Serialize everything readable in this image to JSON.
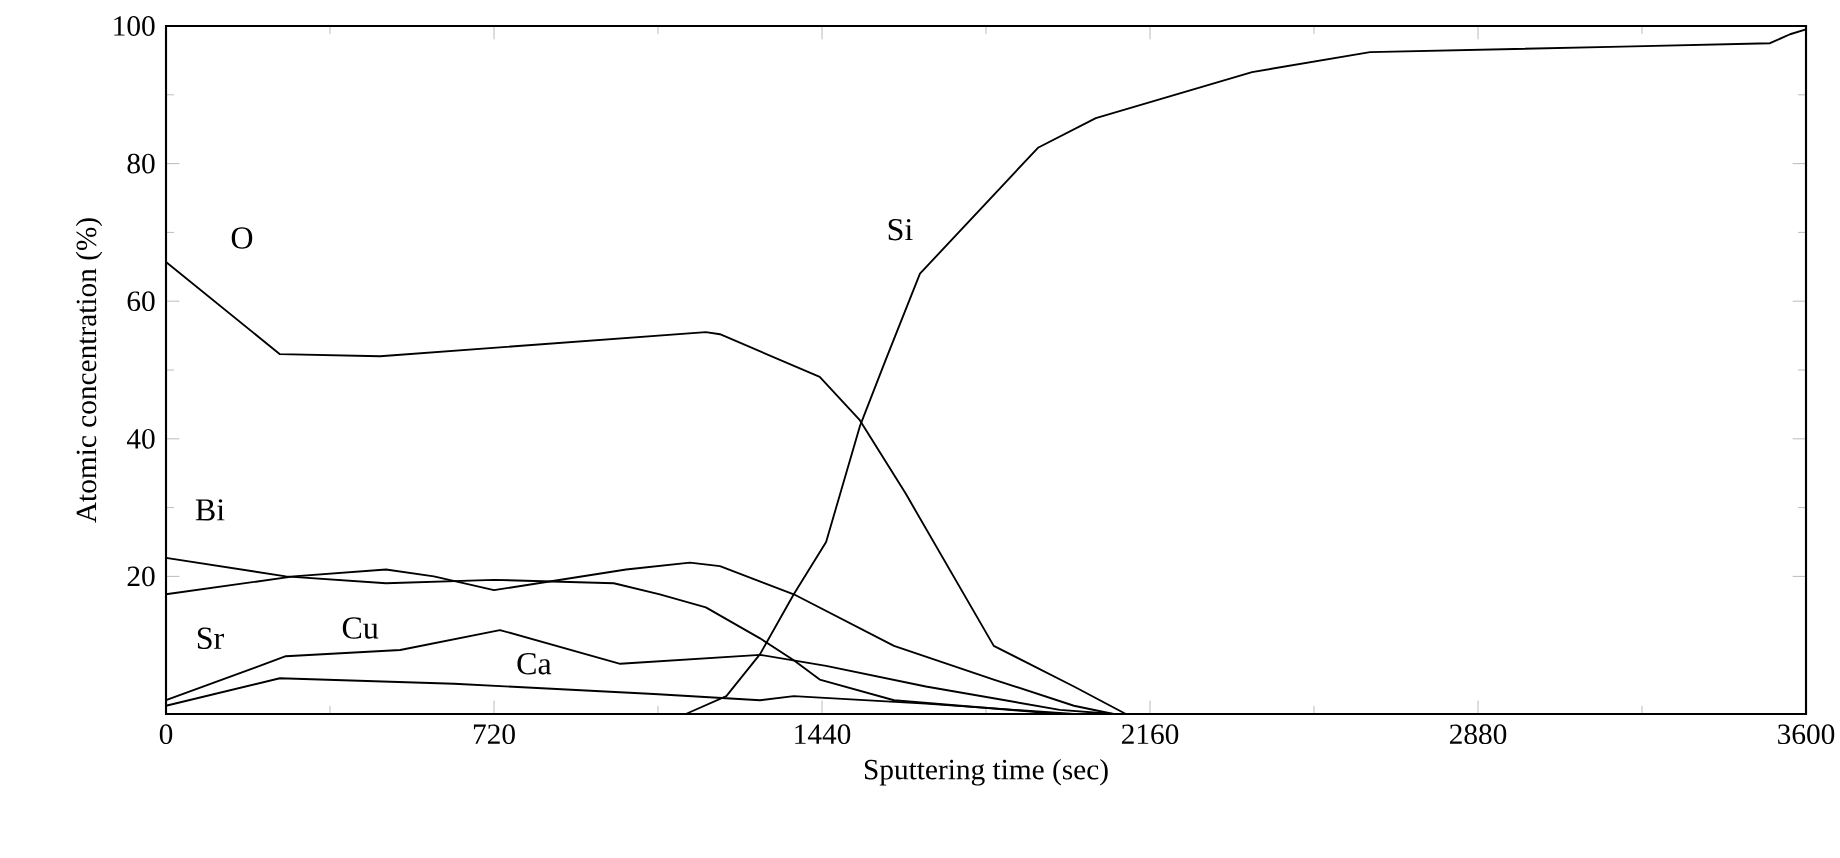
{
  "chart_data": {
    "type": "line",
    "xlabel": "Sputtering time (sec)",
    "ylabel": "Atomic concentration (%)",
    "xlim": [
      0,
      3600
    ],
    "ylim": [
      0,
      100
    ],
    "xticks": [
      0,
      720,
      1440,
      2160,
      2880,
      3600
    ],
    "yticks": [
      20,
      40,
      60,
      80,
      100
    ],
    "grid": false,
    "marker": "none",
    "line_style": "solid",
    "series": [
      {
        "name": "O",
        "color": "#000000",
        "x": [
          0,
          250,
          470,
          1185,
          1216,
          1435,
          1523,
          1624,
          1817,
          1993,
          2107
        ],
        "values": [
          65.7,
          52.3,
          52,
          55.5,
          55.2,
          49,
          42.7,
          32,
          9.9,
          4,
          0
        ]
      },
      {
        "name": "Si",
        "color": "#000000",
        "x": [
          1141,
          1230,
          1304,
          1378,
          1449,
          1523,
          1580,
          1655,
          1914,
          2041,
          2384,
          2643,
          3196,
          3521,
          3565,
          3600
        ],
        "values": [
          0,
          2.6,
          8.7,
          17.4,
          25,
          41.8,
          51.5,
          64,
          82.3,
          86.6,
          93.3,
          96.2,
          97,
          97.5,
          98.8,
          99.5
        ]
      },
      {
        "name": "Bi",
        "color": "#000000",
        "x": [
          0,
          263,
          483,
          720,
          983,
          1084,
          1185,
          1304,
          1378,
          1435,
          1598,
          1962
        ],
        "values": [
          22.7,
          20,
          19,
          19.5,
          19,
          17.4,
          15.5,
          11,
          7.8,
          5,
          2,
          0
        ]
      },
      {
        "name": "Sr",
        "color": "#000000",
        "x": [
          0,
          280,
          483,
          588,
          720,
          1010,
          1150,
          1216,
          1378,
          1598,
          1817,
          1993,
          2080
        ],
        "values": [
          17.4,
          20,
          21,
          20,
          18,
          21,
          22,
          21.5,
          17.4,
          9.9,
          5,
          1.2,
          0
        ]
      },
      {
        "name": "Cu",
        "color": "#000000",
        "x": [
          0,
          263,
          514,
          733,
          997,
          1304,
          1449,
          1668,
          1962,
          2080
        ],
        "values": [
          2,
          8.4,
          9.3,
          12.2,
          7.3,
          8.6,
          7,
          4,
          0.6,
          0
        ]
      },
      {
        "name": "Ca",
        "color": "#000000",
        "x": [
          0,
          250,
          632,
          1071,
          1304,
          1378,
          1668,
          1993
        ],
        "values": [
          1.2,
          5.2,
          4.4,
          2.9,
          2,
          2.6,
          1.5,
          0
        ]
      }
    ]
  }
}
